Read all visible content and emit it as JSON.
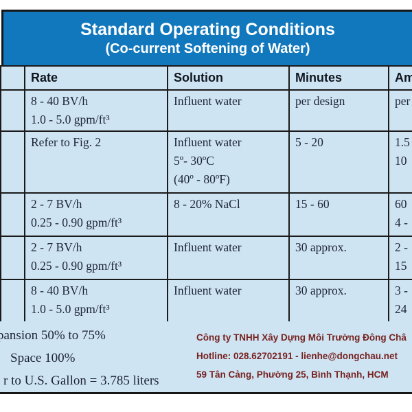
{
  "banner": {
    "title": "Standard Operating Conditions",
    "subtitle": "(Co-current Softening of Water)"
  },
  "table": {
    "headers": {
      "blank": "",
      "rate": "Rate",
      "solution": "Solution",
      "minutes": "Minutes",
      "amount": "Am"
    },
    "rows": [
      {
        "rate": [
          "8 - 40 BV/h",
          "1.0 - 5.0 gpm/ft³"
        ],
        "solution": [
          "Influent water"
        ],
        "minutes": [
          "per design"
        ],
        "amount": [
          "per"
        ]
      },
      {
        "rate": [
          "Refer to Fig. 2"
        ],
        "solution": [
          "Influent water",
          "5º- 30ºC",
          "(40º - 80ºF)"
        ],
        "minutes": [
          "5 - 20"
        ],
        "amount": [
          "1.5",
          "10"
        ]
      },
      {
        "rate": [
          "2 - 7 BV/h",
          "0.25 - 0.90 gpm/ft³"
        ],
        "solution": [
          "8 - 20% NaCl"
        ],
        "minutes": [
          "15 - 60"
        ],
        "amount": [
          "60",
          "4 -"
        ]
      },
      {
        "rate": [
          "2 - 7 BV/h",
          "0.25 - 0.90 gpm/ft³"
        ],
        "solution": [
          "Influent water"
        ],
        "minutes": [
          "30 approx."
        ],
        "amount": [
          "2 -",
          "15"
        ]
      },
      {
        "rate": [
          "8 - 40 BV/h",
          "1.0 - 5.0 gpm/ft³"
        ],
        "solution": [
          "Influent water"
        ],
        "minutes": [
          "30 approx."
        ],
        "amount": [
          "3 -",
          "24"
        ]
      }
    ]
  },
  "footer": {
    "notes": [
      "pansion 50% to 75%",
      "Space 100%",
      "r to U.S. Gallon =  3.785 liters"
    ],
    "company": {
      "name": "Công ty TNHH Xây Dựng Môi Trường Đông Châ",
      "hotline": "Hotline: 028.62702191 - lienhe@dongchau.net",
      "address": "59 Tân Cảng, Phường 25, Bình Thạnh, HCM"
    }
  },
  "colors": {
    "banner_bg": "#1178bd",
    "banner_text": "#ffffff",
    "cell_bg": "#cfe4f3",
    "grid_border": "#1a1a1a",
    "body_text": "#1c2438",
    "company_text": "#76221f"
  }
}
